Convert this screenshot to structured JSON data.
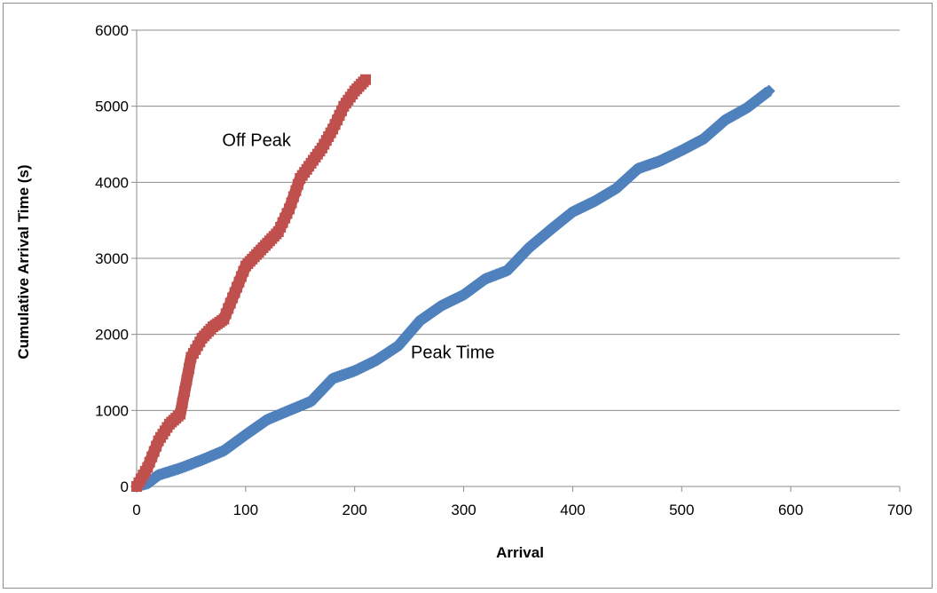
{
  "chart_data": {
    "type": "scatter",
    "title": "",
    "xlabel": "Arrival",
    "ylabel": "Cumulative Arrival Time (s)",
    "xlim": [
      0,
      700
    ],
    "ylim": [
      0,
      6000
    ],
    "x_ticks": [
      "0",
      "100",
      "200",
      "300",
      "400",
      "500",
      "600",
      "700"
    ],
    "y_ticks": [
      "0",
      "1000",
      "2000",
      "3000",
      "4000",
      "5000",
      "6000"
    ],
    "grid": "horizontal",
    "legend": "none",
    "series": [
      {
        "key": "peak",
        "color": "#4f81bd",
        "marker": "diamond",
        "points": [
          [
            0,
            0
          ],
          [
            10,
            40
          ],
          [
            20,
            150
          ],
          [
            40,
            240
          ],
          [
            60,
            350
          ],
          [
            80,
            470
          ],
          [
            100,
            680
          ],
          [
            120,
            880
          ],
          [
            140,
            1000
          ],
          [
            160,
            1120
          ],
          [
            180,
            1420
          ],
          [
            200,
            1520
          ],
          [
            220,
            1660
          ],
          [
            240,
            1850
          ],
          [
            260,
            2180
          ],
          [
            280,
            2380
          ],
          [
            300,
            2520
          ],
          [
            320,
            2730
          ],
          [
            340,
            2840
          ],
          [
            360,
            3140
          ],
          [
            380,
            3380
          ],
          [
            400,
            3610
          ],
          [
            420,
            3750
          ],
          [
            440,
            3920
          ],
          [
            460,
            4180
          ],
          [
            480,
            4280
          ],
          [
            500,
            4420
          ],
          [
            520,
            4570
          ],
          [
            540,
            4820
          ],
          [
            560,
            4980
          ],
          [
            580,
            5200
          ]
        ]
      },
      {
        "key": "offpeak",
        "color": "#c0504d",
        "marker": "square",
        "points": [
          [
            0,
            0
          ],
          [
            10,
            250
          ],
          [
            20,
            600
          ],
          [
            30,
            820
          ],
          [
            40,
            950
          ],
          [
            50,
            1700
          ],
          [
            60,
            1950
          ],
          [
            70,
            2100
          ],
          [
            80,
            2200
          ],
          [
            90,
            2550
          ],
          [
            100,
            2900
          ],
          [
            110,
            3050
          ],
          [
            120,
            3200
          ],
          [
            130,
            3350
          ],
          [
            140,
            3650
          ],
          [
            150,
            4050
          ],
          [
            160,
            4250
          ],
          [
            170,
            4450
          ],
          [
            180,
            4700
          ],
          [
            190,
            5000
          ],
          [
            200,
            5200
          ],
          [
            210,
            5350
          ]
        ]
      }
    ],
    "annotations": [
      {
        "text": "Off Peak",
        "x": 110,
        "y": 4560
      },
      {
        "text": "Peak Time",
        "x": 290,
        "y": 1770
      }
    ]
  }
}
